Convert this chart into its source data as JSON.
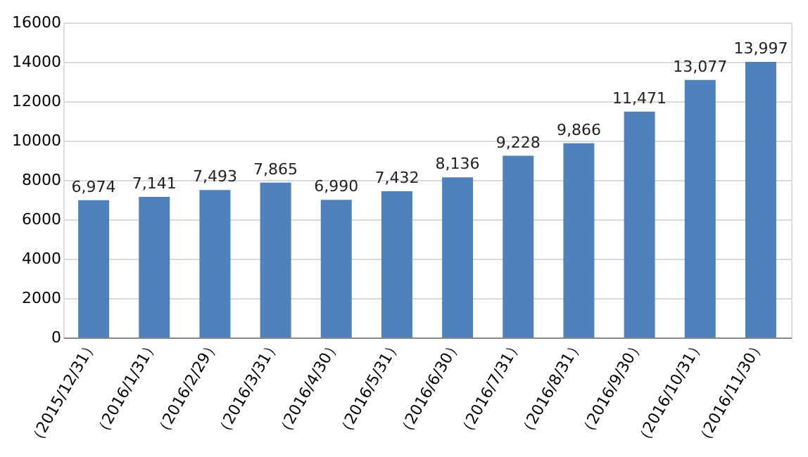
{
  "chart_data": {
    "type": "bar",
    "categories": [
      "（2015/12/31）",
      "（2016/1/31）",
      "（2016/2/29）",
      "（2016/3/31）",
      "（2016/4/30）",
      "（2016/5/31）",
      "（2016/6/30）",
      "（2016/7/31）",
      "（2016/8/31）",
      "（2016/9/30）",
      "（2016/10/31）",
      "（2016/11/30）"
    ],
    "values": [
      6974,
      7141,
      7493,
      7865,
      6990,
      7432,
      8136,
      9228,
      9866,
      11471,
      13077,
      13997
    ],
    "value_labels": [
      "6,974",
      "7,141",
      "7,493",
      "7,865",
      "6,990",
      "7,432",
      "8,136",
      "9,228",
      "9,866",
      "11,471",
      "13,077",
      "13,997"
    ],
    "color": "#4f81bd",
    "ylim": [
      0,
      16000
    ],
    "yticks": [
      0,
      2000,
      4000,
      6000,
      8000,
      10000,
      12000,
      14000,
      16000
    ],
    "grid": "y"
  }
}
